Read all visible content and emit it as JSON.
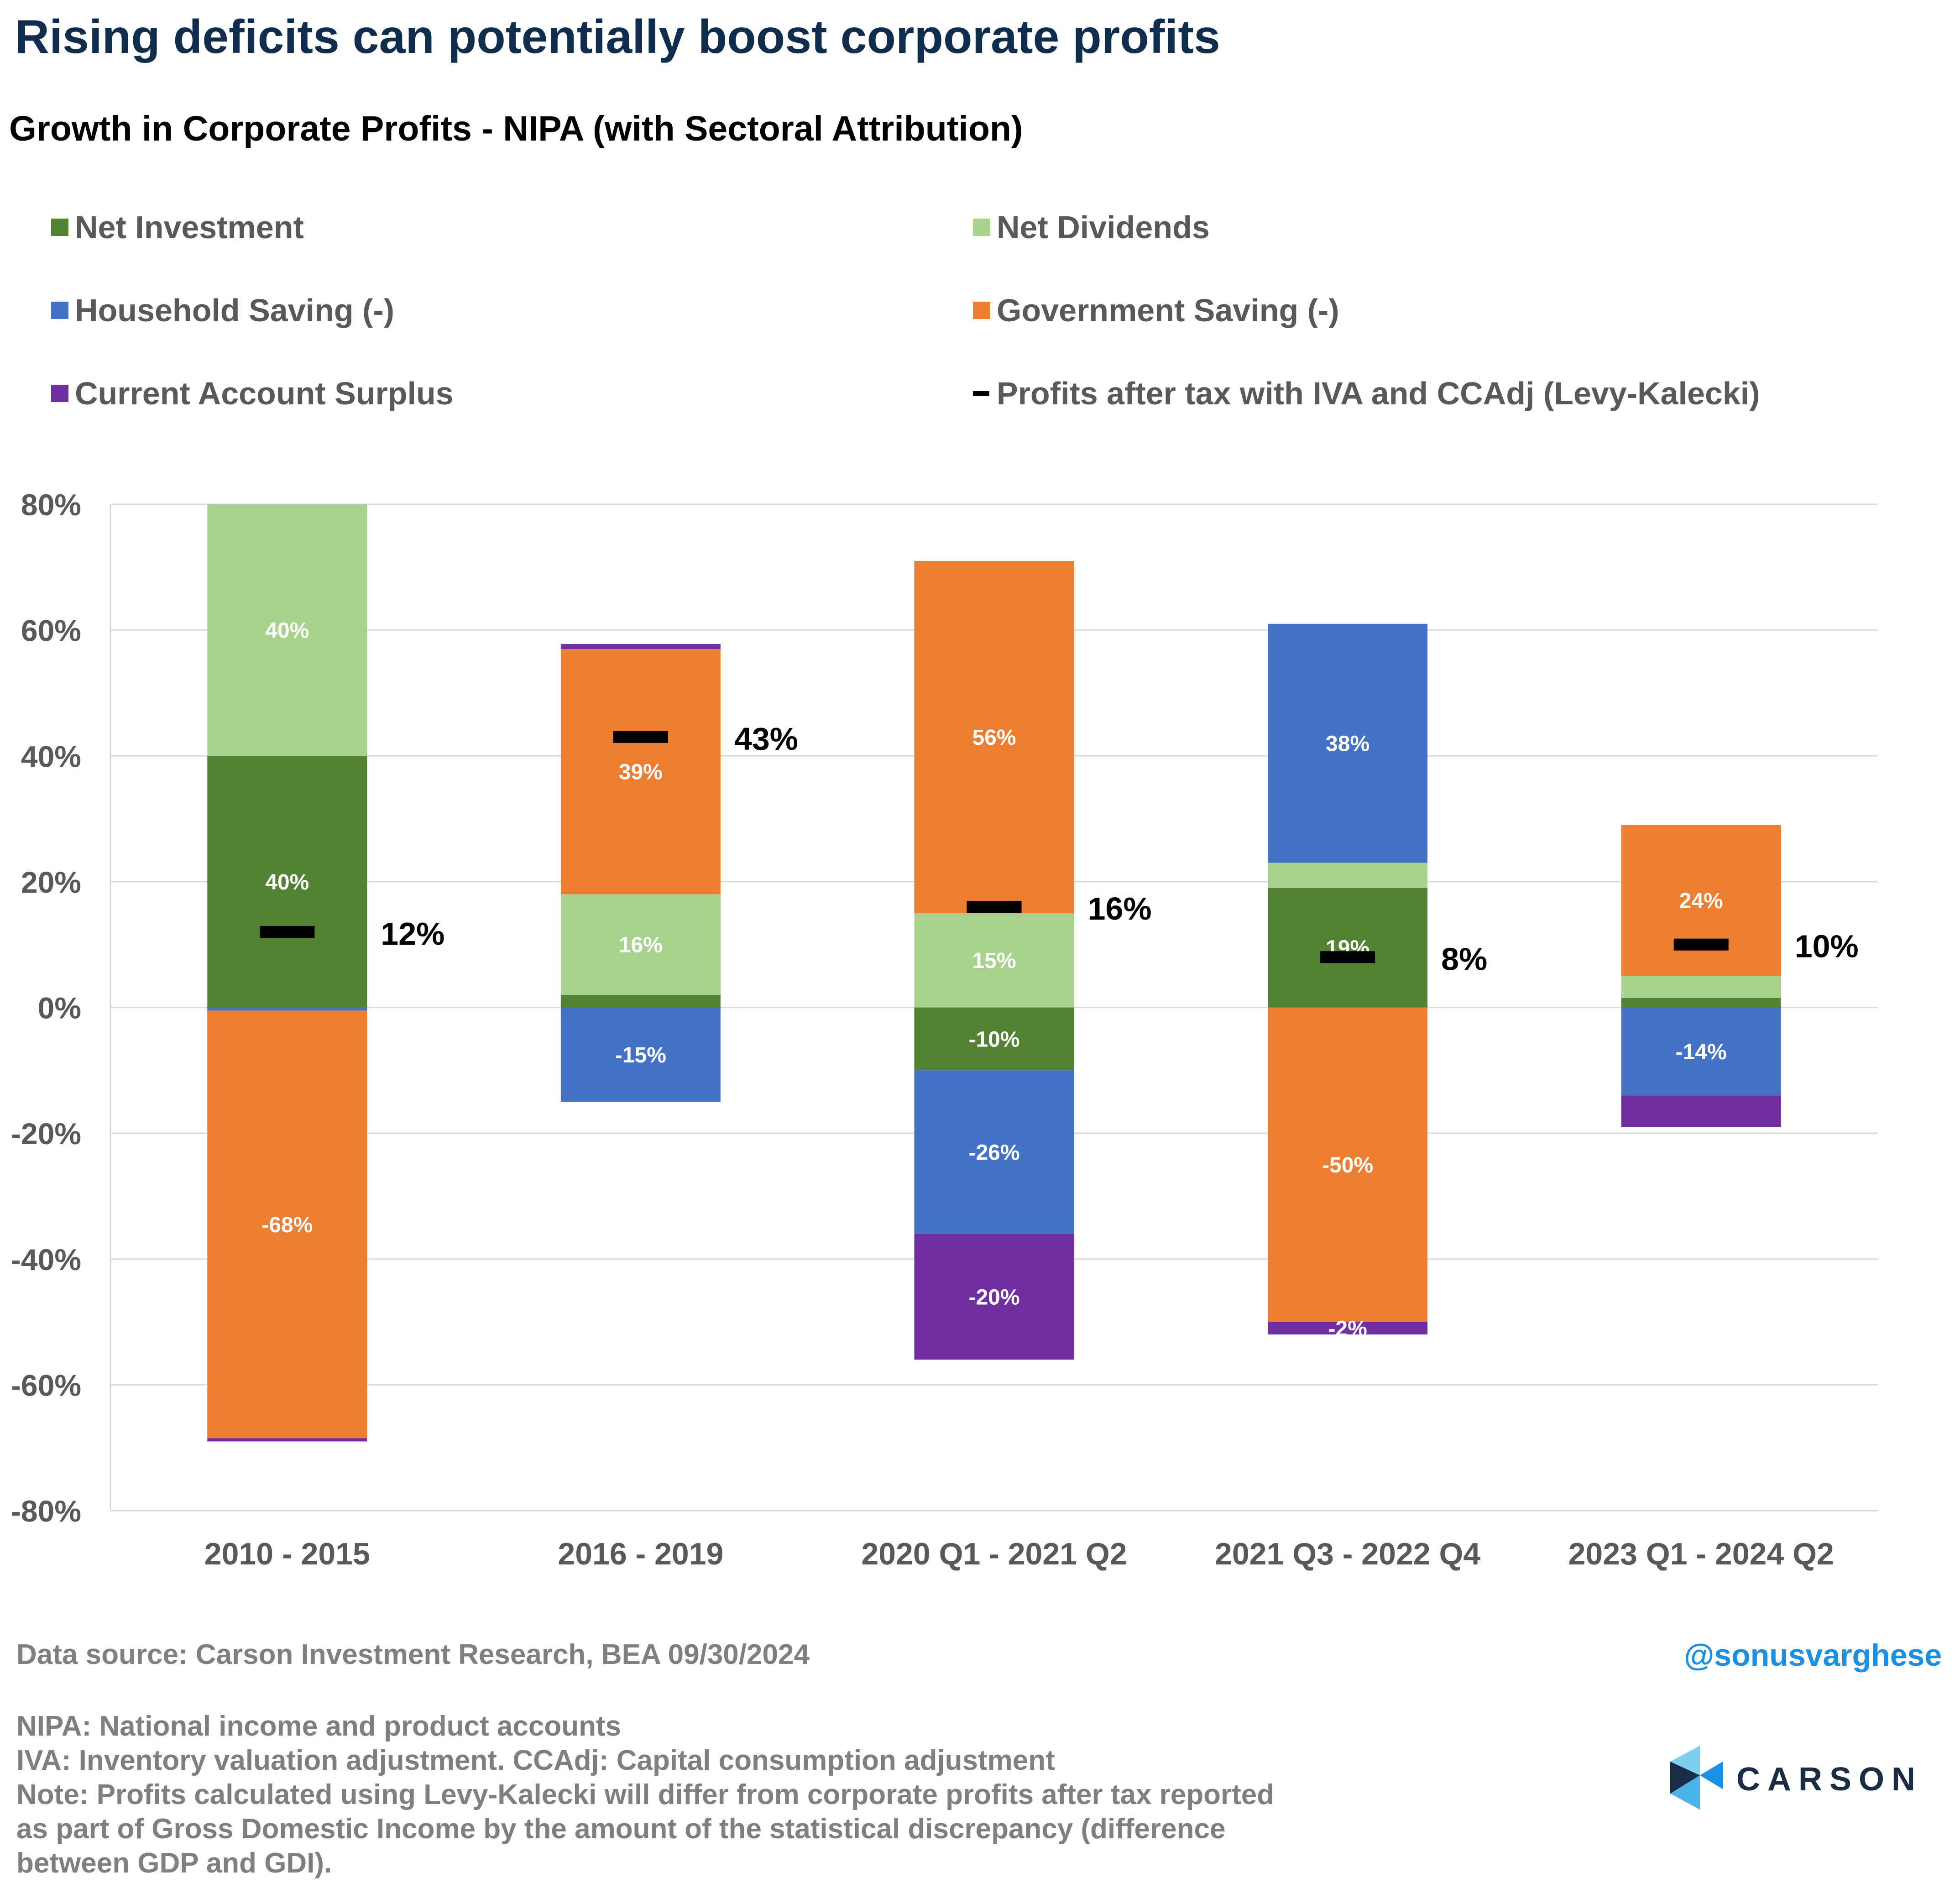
{
  "header": {
    "title": "Rising deficits can potentially boost corporate profits",
    "subtitle": "Growth in Corporate Profits - NIPA (with Sectoral Attribution)"
  },
  "footer": {
    "source": "Data source: Carson Investment Research, BEA   09/30/2024",
    "handle": "@sonusvarghese",
    "notes": [
      "NIPA: National income and product accounts",
      "IVA: Inventory valuation adjustment. CCAdj: Capital consumption adjustment",
      "Note: Profits calculated using Levy-Kalecki will differ from corporate profits after tax reported",
      "as part of Gross Domestic Income by the amount of the statistical discrepancy (difference",
      "between GDP and GDI)."
    ],
    "logo_text": "CARSON"
  },
  "chart_data": {
    "type": "bar",
    "stacked": true,
    "title": "Growth in Corporate Profits - NIPA (with Sectoral Attribution)",
    "categories": [
      "2010 - 2015",
      "2016 - 2019",
      "2020 Q1 - 2021 Q2",
      "2021 Q3 - 2022 Q4",
      "2023 Q1 - 2024 Q2"
    ],
    "ylim": [
      -80,
      80
    ],
    "yticks": [
      -80,
      -60,
      -40,
      -20,
      0,
      20,
      40,
      60,
      80
    ],
    "ytick_labels": [
      "-80%",
      "-60%",
      "-40%",
      "-20%",
      "0%",
      "20%",
      "40%",
      "60%",
      "80%"
    ],
    "grid": true,
    "legend_position": "top",
    "series": [
      {
        "name": "Net Investment",
        "color": "#548235",
        "values": [
          40,
          2,
          -10,
          19,
          1.5
        ],
        "labels": [
          "40%",
          "",
          "-10%",
          "19%",
          ""
        ]
      },
      {
        "name": "Net Dividends",
        "color": "#a9d18e",
        "values": [
          40,
          16,
          15,
          4,
          3.5
        ],
        "labels": [
          "40%",
          "16%",
          "15%",
          "",
          ""
        ]
      },
      {
        "name": "Household Saving (-)",
        "color": "#4472c4",
        "values": [
          -0.5,
          -15,
          -26,
          38,
          -14
        ],
        "labels": [
          "",
          "-15%",
          "-26%",
          "38%",
          "-14%"
        ]
      },
      {
        "name": "Government Saving (-)",
        "color": "#ed7d31",
        "values": [
          -68,
          39,
          56,
          -50,
          24
        ],
        "labels": [
          "-68%",
          "39%",
          "56%",
          "-50%",
          "24%"
        ]
      },
      {
        "name": "Current Account Surplus",
        "color": "#7030a0",
        "values": [
          -0.5,
          0.8,
          -20,
          -2,
          -5
        ],
        "labels": [
          "",
          "",
          "-20%",
          "-2%",
          ""
        ]
      }
    ],
    "marker_series": {
      "name": "Profits after tax with IVA and CCAdj (Levy-Kalecki)",
      "color": "#000000",
      "values": [
        12,
        43,
        16,
        8,
        10
      ],
      "labels": [
        "12%",
        "43%",
        "16%",
        "8%",
        "10%"
      ]
    }
  }
}
